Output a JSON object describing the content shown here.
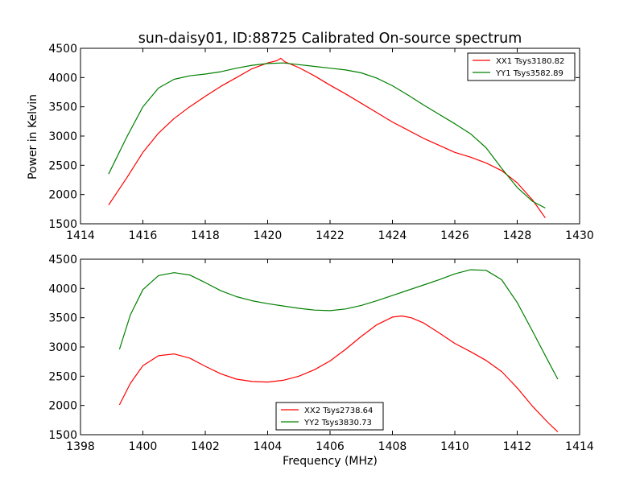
{
  "figure_title": "sun-daisy01, ID:88725 Calibrated On-source spectrum",
  "colors": {
    "red": "#ff0000",
    "green": "#008000",
    "axes": "#000000"
  },
  "chart_data": [
    {
      "type": "line",
      "title": "",
      "xlabel": "",
      "ylabel": "Power in Kelvin",
      "xlim": [
        1414,
        1430
      ],
      "ylim": [
        1500,
        4500
      ],
      "xticks": [
        1414,
        1416,
        1418,
        1420,
        1422,
        1424,
        1426,
        1428,
        1430
      ],
      "yticks": [
        1500,
        2000,
        2500,
        3000,
        3500,
        4000,
        4500
      ],
      "grid": false,
      "legend_position": "upper right",
      "series": [
        {
          "name": "XX1 Tsys3180.82",
          "color": "#ff0000",
          "x": [
            1414.9,
            1415.5,
            1416.0,
            1416.5,
            1417.0,
            1417.5,
            1418.0,
            1418.5,
            1419.0,
            1419.5,
            1420.0,
            1420.3,
            1420.42,
            1420.55,
            1421.0,
            1421.5,
            1422.0,
            1422.5,
            1423.0,
            1423.5,
            1424.0,
            1424.5,
            1425.0,
            1425.5,
            1426.0,
            1426.5,
            1427.0,
            1427.5,
            1428.0,
            1428.5,
            1428.9
          ],
          "y": [
            1820,
            2300,
            2720,
            3050,
            3300,
            3500,
            3680,
            3850,
            4000,
            4150,
            4250,
            4290,
            4330,
            4270,
            4170,
            4030,
            3870,
            3720,
            3560,
            3400,
            3240,
            3100,
            2960,
            2840,
            2720,
            2640,
            2540,
            2410,
            2200,
            1900,
            1600
          ]
        },
        {
          "name": "YY1 Tsys3582.89",
          "color": "#008000",
          "x": [
            1414.9,
            1415.5,
            1416.0,
            1416.5,
            1417.0,
            1417.5,
            1418.0,
            1418.5,
            1419.0,
            1419.5,
            1420.0,
            1420.5,
            1421.0,
            1421.5,
            1422.0,
            1422.5,
            1423.0,
            1423.5,
            1424.0,
            1424.5,
            1425.0,
            1425.5,
            1426.0,
            1426.5,
            1427.0,
            1427.5,
            1428.0,
            1428.5,
            1428.9
          ],
          "y": [
            2350,
            3000,
            3500,
            3820,
            3970,
            4030,
            4060,
            4100,
            4160,
            4210,
            4240,
            4250,
            4220,
            4190,
            4160,
            4130,
            4080,
            3990,
            3860,
            3700,
            3530,
            3370,
            3210,
            3040,
            2800,
            2450,
            2120,
            1880,
            1770
          ]
        }
      ]
    },
    {
      "type": "line",
      "title": "",
      "xlabel": "Frequency (MHz)",
      "ylabel": "",
      "xlim": [
        1398,
        1414
      ],
      "ylim": [
        1500,
        4500
      ],
      "xticks": [
        1398,
        1400,
        1402,
        1404,
        1406,
        1408,
        1410,
        1412,
        1414
      ],
      "yticks": [
        1500,
        2000,
        2500,
        3000,
        3500,
        4000,
        4500
      ],
      "grid": false,
      "legend_position": "lower center",
      "series": [
        {
          "name": "XX2 Tsys2738.64",
          "color": "#ff0000",
          "x": [
            1399.25,
            1399.6,
            1400.0,
            1400.5,
            1401.0,
            1401.5,
            1402.0,
            1402.5,
            1403.0,
            1403.5,
            1404.0,
            1404.5,
            1405.0,
            1405.5,
            1406.0,
            1406.5,
            1407.0,
            1407.5,
            1408.0,
            1408.3,
            1408.6,
            1409.0,
            1409.5,
            1410.0,
            1410.5,
            1411.0,
            1411.5,
            1412.0,
            1412.5,
            1413.0,
            1413.3
          ],
          "y": [
            2010,
            2380,
            2680,
            2850,
            2880,
            2810,
            2670,
            2540,
            2450,
            2410,
            2400,
            2430,
            2500,
            2610,
            2760,
            2960,
            3180,
            3380,
            3510,
            3530,
            3500,
            3410,
            3240,
            3060,
            2920,
            2770,
            2580,
            2300,
            1980,
            1700,
            1550
          ]
        },
        {
          "name": "YY2 Tsys3830.73",
          "color": "#008000",
          "x": [
            1399.25,
            1399.6,
            1400.0,
            1400.5,
            1401.0,
            1401.5,
            1402.0,
            1402.5,
            1403.0,
            1403.5,
            1404.0,
            1404.5,
            1405.0,
            1405.5,
            1406.0,
            1406.5,
            1407.0,
            1407.5,
            1408.0,
            1408.5,
            1409.0,
            1409.5,
            1410.0,
            1410.5,
            1411.0,
            1411.5,
            1412.0,
            1412.5,
            1413.0,
            1413.3
          ],
          "y": [
            2960,
            3550,
            3980,
            4220,
            4270,
            4230,
            4100,
            3960,
            3860,
            3790,
            3740,
            3700,
            3660,
            3630,
            3620,
            3650,
            3710,
            3790,
            3880,
            3970,
            4060,
            4150,
            4250,
            4320,
            4310,
            4150,
            3760,
            3260,
            2750,
            2450
          ]
        }
      ]
    }
  ]
}
